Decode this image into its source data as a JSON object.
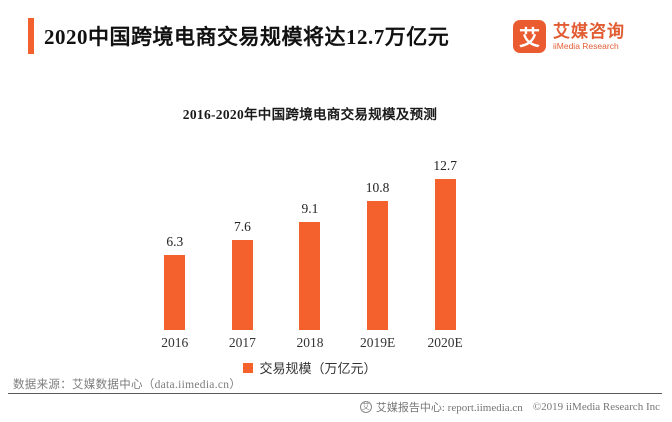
{
  "header": {
    "title": "2020中国跨境电商交易规模将达12.7万亿元",
    "accent_color": "#F3612E",
    "logo": {
      "glyph": "艾",
      "name_cn": "艾媒咨询",
      "name_en": "iiMedia Research",
      "color": "#E25C33"
    }
  },
  "chart_data": {
    "type": "bar",
    "title": "2016-2020年中国跨境电商交易规模及预测",
    "categories": [
      "2016",
      "2017",
      "2018",
      "2019E",
      "2020E"
    ],
    "values": [
      6.3,
      7.6,
      9.1,
      10.8,
      12.7
    ],
    "series_name": "交易规模（万亿元）",
    "bar_color": "#F4612C",
    "xlabel": "",
    "ylabel": "",
    "ylim": [
      0,
      14
    ],
    "grid": false,
    "data_labels": true,
    "legend_position": "bottom"
  },
  "footer": {
    "source": "数据来源：艾媒数据中心（data.iimedia.cn）",
    "report_icon_glyph": "艾",
    "report_center": "艾媒报告中心: report.iimedia.cn",
    "copyright": "©2019  iiMedia Research  Inc"
  }
}
